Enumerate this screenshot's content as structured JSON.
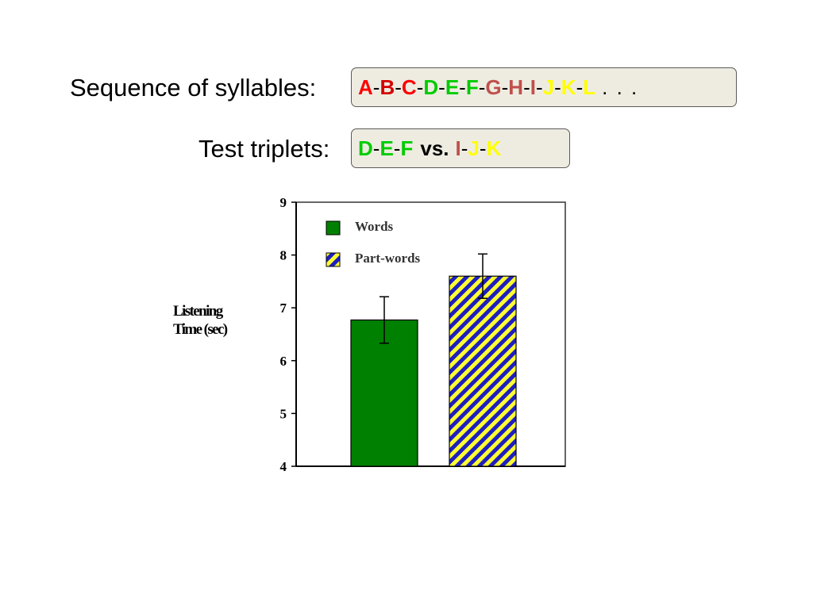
{
  "sequence": {
    "label": "Sequence of syllables:",
    "syllables": [
      {
        "text": "A",
        "color": "#ff0000"
      },
      {
        "text": "B",
        "color": "#d40000"
      },
      {
        "text": "C",
        "color": "#ff0000"
      },
      {
        "text": "D",
        "color": "#00cc00"
      },
      {
        "text": "E",
        "color": "#00cc00"
      },
      {
        "text": "F",
        "color": "#00cc00"
      },
      {
        "text": "G",
        "color": "#c0504d"
      },
      {
        "text": "H",
        "color": "#c0504d"
      },
      {
        "text": "I",
        "color": "#c0504d"
      },
      {
        "text": "J",
        "color": "#ffff00"
      },
      {
        "text": "K",
        "color": "#ffff00"
      },
      {
        "text": "L",
        "color": "#ffff00"
      }
    ],
    "ellipsis": ". . ."
  },
  "test": {
    "label": "Test triplets:",
    "word": [
      {
        "text": "D",
        "color": "#00cc00"
      },
      {
        "text": "E",
        "color": "#00cc00"
      },
      {
        "text": "F",
        "color": "#00cc00"
      }
    ],
    "vs": "vs.",
    "partword": [
      {
        "text": "I",
        "color": "#c0504d"
      },
      {
        "text": "J",
        "color": "#ffff00"
      },
      {
        "text": "K",
        "color": "#ffff00"
      }
    ]
  },
  "chart_data": {
    "type": "bar",
    "categories": [
      "Words",
      "Part-words"
    ],
    "series": [
      {
        "name": "Words",
        "value": 6.77,
        "error": 0.44,
        "color": "#008000",
        "pattern": "solid"
      },
      {
        "name": "Part-words",
        "value": 7.6,
        "error": 0.42,
        "color": "#ffff33",
        "stripe_color": "#1f1fbf",
        "pattern": "diagonal-stripes"
      }
    ],
    "ylabel": [
      "Listening",
      "Time (sec)"
    ],
    "yticks": [
      "4",
      "5",
      "6",
      "7",
      "8",
      "9"
    ],
    "ylim": [
      4,
      9
    ],
    "legend": [
      "Words",
      "Part-words"
    ],
    "legend_position": "top-left",
    "grid": false
  }
}
